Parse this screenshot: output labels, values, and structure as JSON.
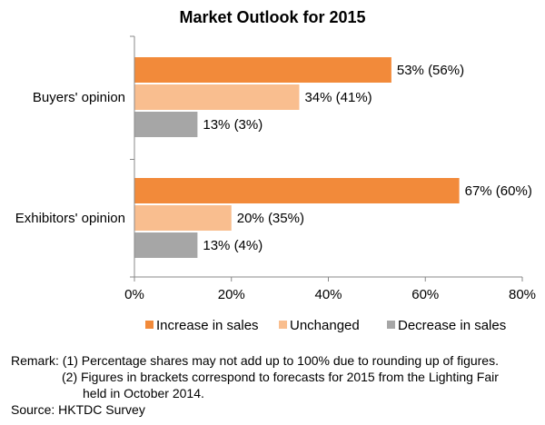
{
  "chart_data": {
    "type": "bar",
    "orientation": "horizontal",
    "title": "Market Outlook for 2015",
    "categories": [
      "Buyers' opinion",
      "Exhibitors' opinion"
    ],
    "series": [
      {
        "name": "Increase in sales",
        "color": "#f28a3a",
        "values": [
          53,
          67
        ],
        "labels": [
          "53% (56%)",
          "67% (60%)"
        ]
      },
      {
        "name": "Unchanged",
        "color": "#f9be8f",
        "values": [
          34,
          20
        ],
        "labels": [
          "34% (41%)",
          "20% (35%)"
        ]
      },
      {
        "name": "Decrease in sales",
        "color": "#a6a6a6",
        "values": [
          13,
          13
        ],
        "labels": [
          "13% (3%)",
          "13% (4%)"
        ]
      }
    ],
    "xlim": [
      0,
      80
    ],
    "xticks": [
      0,
      20,
      40,
      60,
      80
    ],
    "xtick_labels": [
      "0%",
      "20%",
      "40%",
      "60%",
      "80%"
    ],
    "grid": false,
    "legend_position": "bottom"
  },
  "notes": {
    "remark_1": "Remark: (1)  Percentage shares may not add up to 100% due to rounding up of figures.",
    "remark_2": "(2)  Figures in brackets correspond to forecasts for 2015 from the Lighting Fair",
    "remark_3": "held in October 2014.",
    "source": "Source: HKTDC Survey"
  }
}
